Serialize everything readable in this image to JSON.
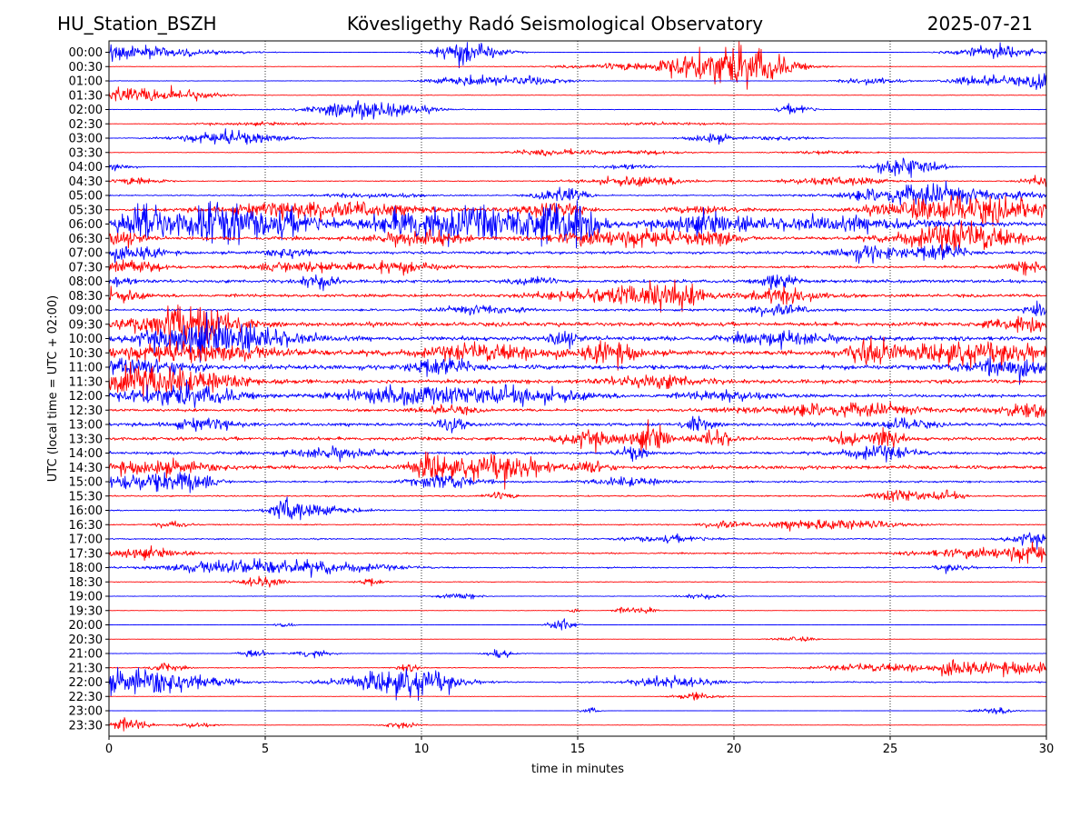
{
  "header": {
    "station": "HU_Station_BSZH",
    "observatory": "Kövesligethy Radó Seismological Observatory",
    "date": "2025-07-21"
  },
  "chart_data": {
    "type": "line",
    "xlabel": "time in minutes",
    "ylabel": "UTC (local time = UTC + 02:00)",
    "xlim": [
      0,
      30
    ],
    "x_ticks": [
      "0",
      "5",
      "10",
      "15",
      "20",
      "25",
      "30"
    ],
    "x_tick_values": [
      0,
      5,
      10,
      15,
      20,
      25,
      30
    ],
    "grid": "vertical dotted lines at x ticks",
    "colors": {
      "even_rows": "#0000ff",
      "odd_rows": "#ff0000",
      "axes": "#000000"
    },
    "rows": [
      {
        "label": "00:00",
        "noise": 0.06,
        "events": [
          [
            0.3,
            3.6,
            2
          ],
          [
            11.3,
            2.5,
            0.5
          ],
          [
            11.6,
            3.8,
            0.8
          ],
          [
            28.3,
            3.6,
            0.9
          ]
        ]
      },
      {
        "label": "00:30",
        "noise": 0.08,
        "events": [
          [
            19.8,
            6.5,
            1.2
          ],
          [
            20.6,
            4.0,
            0.9
          ],
          [
            18.0,
            2.5,
            2
          ]
        ]
      },
      {
        "label": "01:00",
        "noise": 0.12,
        "events": [
          [
            11.5,
            2.6,
            0.8
          ],
          [
            13.5,
            2.3,
            0.8
          ],
          [
            24.4,
            2.2,
            0.6
          ],
          [
            28.2,
            2.9,
            0.9
          ],
          [
            29.9,
            4.5,
            0.3
          ]
        ]
      },
      {
        "label": "01:30",
        "noise": 0.1,
        "events": [
          [
            0.1,
            4.0,
            0.5
          ],
          [
            1.9,
            3.5,
            1
          ]
        ]
      },
      {
        "label": "02:00",
        "noise": 0.12,
        "events": [
          [
            8.3,
            3.2,
            0.9
          ],
          [
            9.2,
            1.5,
            1
          ],
          [
            22.0,
            2.5,
            0.4
          ],
          [
            7.0,
            1.0,
            1
          ]
        ]
      },
      {
        "label": "02:30",
        "noise": 0.07,
        "events": [
          [
            4.8,
            0.8,
            1.5
          ],
          [
            17.8,
            0.7,
            1.5
          ]
        ]
      },
      {
        "label": "03:00",
        "noise": 0.1,
        "events": [
          [
            3.9,
            3.4,
            1.2
          ],
          [
            19.2,
            2.4,
            0.5
          ],
          [
            21.5,
            1.1,
            0.8
          ]
        ]
      },
      {
        "label": "03:30",
        "noise": 0.1,
        "events": [
          [
            14.2,
            1.5,
            1
          ],
          [
            17.2,
            1.1,
            1
          ],
          [
            23.0,
            1.0,
            1
          ]
        ]
      },
      {
        "label": "04:00",
        "noise": 0.14,
        "events": [
          [
            0.1,
            2.5,
            0.4
          ],
          [
            25.0,
            2.2,
            0.5
          ],
          [
            25.8,
            3.8,
            0.6
          ],
          [
            16.5,
            1.4,
            0.6
          ]
        ]
      },
      {
        "label": "04:30",
        "noise": 0.18,
        "events": [
          [
            1.0,
            2.5,
            0.5
          ],
          [
            17.0,
            2.4,
            1.2
          ],
          [
            23.2,
            2.2,
            1.2
          ],
          [
            30.0,
            2.6,
            0.5
          ]
        ]
      },
      {
        "label": "05:00",
        "noise": 0.3,
        "events": [
          [
            14.5,
            4.4,
            0.5
          ],
          [
            25.6,
            3.4,
            1.5
          ],
          [
            27.5,
            2.1,
            2
          ],
          [
            8.5,
            1.2,
            1
          ]
        ]
      },
      {
        "label": "05:30",
        "noise": 0.45,
        "events": [
          [
            6.0,
            2.6,
            2
          ],
          [
            8.0,
            2.0,
            2
          ],
          [
            14.2,
            3.6,
            0.8
          ],
          [
            26.5,
            4.8,
            1.4
          ],
          [
            28.8,
            4.0,
            1.5
          ],
          [
            19.0,
            1.6,
            1
          ]
        ]
      },
      {
        "label": "06:00",
        "noise": 1.0,
        "events": [
          [
            0.7,
            5.0,
            0.3
          ],
          [
            1.3,
            8.0,
            0.3
          ],
          [
            2.4,
            4.2,
            1.2
          ],
          [
            3.4,
            7.0,
            0.5
          ],
          [
            5.3,
            6.0,
            1.3
          ],
          [
            9.8,
            5.4,
            1
          ],
          [
            12.0,
            7.0,
            1.5
          ],
          [
            14.3,
            7.4,
            0.8
          ],
          [
            15.1,
            6.8,
            0.4
          ],
          [
            19.0,
            4.5,
            1
          ],
          [
            23.5,
            3.0,
            2
          ]
        ]
      },
      {
        "label": "06:30",
        "noise": 0.75,
        "events": [
          [
            0.3,
            4.0,
            0.5
          ],
          [
            10.0,
            3.0,
            1
          ],
          [
            15.4,
            2.6,
            1
          ],
          [
            17.2,
            3.4,
            1
          ],
          [
            19.4,
            3.8,
            0.5
          ],
          [
            26.8,
            5.2,
            1.2
          ],
          [
            28.3,
            2.7,
            1
          ]
        ]
      },
      {
        "label": "07:00",
        "noise": 0.65,
        "events": [
          [
            0.6,
            3.4,
            0.8
          ],
          [
            5.8,
            2.5,
            0.5
          ],
          [
            24.4,
            3.4,
            0.8
          ],
          [
            26.6,
            4.6,
            0.5
          ]
        ]
      },
      {
        "label": "07:30",
        "noise": 0.55,
        "events": [
          [
            0.6,
            3.4,
            0.8
          ],
          [
            6.2,
            2.6,
            1
          ],
          [
            9.2,
            2.7,
            1
          ],
          [
            29.4,
            2.8,
            0.5
          ]
        ]
      },
      {
        "label": "08:00",
        "noise": 0.75,
        "events": [
          [
            6.7,
            3.6,
            0.4
          ],
          [
            21.4,
            4.4,
            0.4
          ],
          [
            0.2,
            2.4,
            0.4
          ],
          [
            13.6,
            2.4,
            0.4
          ]
        ]
      },
      {
        "label": "08:30",
        "noise": 0.75,
        "events": [
          [
            16.5,
            4.4,
            1.5
          ],
          [
            18.0,
            3.8,
            0.8
          ],
          [
            21.8,
            3.4,
            0.8
          ],
          [
            0.2,
            2.8,
            0.6
          ]
        ]
      },
      {
        "label": "09:00",
        "noise": 0.55,
        "events": [
          [
            29.8,
            4.8,
            0.3
          ],
          [
            12.0,
            2.2,
            0.8
          ],
          [
            21.4,
            3.0,
            0.6
          ]
        ]
      },
      {
        "label": "09:30",
        "noise": 0.95,
        "events": [
          [
            2.4,
            7.0,
            0.6
          ],
          [
            3.6,
            4.4,
            0.6
          ],
          [
            1.2,
            3.2,
            1.5
          ],
          [
            29.4,
            4.0,
            0.8
          ]
        ]
      },
      {
        "label": "10:00",
        "noise": 1.0,
        "events": [
          [
            3.9,
            5.6,
            1.5
          ],
          [
            2.5,
            4.2,
            1
          ],
          [
            14.5,
            4.6,
            0.3
          ],
          [
            21.5,
            2.8,
            1
          ]
        ]
      },
      {
        "label": "10:30",
        "noise": 1.1,
        "events": [
          [
            2.5,
            4.0,
            2
          ],
          [
            12.2,
            3.6,
            1.5
          ],
          [
            16.1,
            5.6,
            0.6
          ],
          [
            24.5,
            6.4,
            0.6
          ],
          [
            27.0,
            4.4,
            1
          ],
          [
            29.0,
            4.0,
            0.8
          ]
        ]
      },
      {
        "label": "11:00",
        "noise": 1.05,
        "events": [
          [
            1.0,
            3.8,
            1.2
          ],
          [
            10.6,
            4.4,
            0.6
          ],
          [
            28.8,
            4.6,
            1
          ]
        ]
      },
      {
        "label": "11:30",
        "noise": 0.95,
        "events": [
          [
            2.2,
            5.2,
            1.5
          ],
          [
            0.8,
            4.0,
            0.8
          ],
          [
            17.5,
            3.0,
            1
          ]
        ]
      },
      {
        "label": "12:00",
        "noise": 0.75,
        "events": [
          [
            2.3,
            5.2,
            1.3
          ],
          [
            9.6,
            4.0,
            1.5
          ],
          [
            13.2,
            3.4,
            1.5
          ],
          [
            19.8,
            2.4,
            1
          ]
        ]
      },
      {
        "label": "12:30",
        "noise": 0.65,
        "events": [
          [
            23.3,
            3.0,
            2
          ],
          [
            29.5,
            3.8,
            0.8
          ],
          [
            10.8,
            2.2,
            0.6
          ]
        ]
      },
      {
        "label": "13:00",
        "noise": 0.75,
        "events": [
          [
            11.0,
            3.6,
            0.3
          ],
          [
            18.8,
            3.6,
            0.3
          ],
          [
            25.4,
            2.6,
            0.6
          ],
          [
            3.0,
            2.4,
            0.8
          ]
        ]
      },
      {
        "label": "13:30",
        "noise": 0.8,
        "events": [
          [
            17.4,
            6.0,
            0.4
          ],
          [
            15.5,
            3.6,
            0.8
          ],
          [
            19.4,
            3.8,
            0.4
          ],
          [
            24.9,
            5.6,
            0.3
          ],
          [
            23.6,
            3.6,
            0.4
          ]
        ]
      },
      {
        "label": "14:00",
        "noise": 0.65,
        "events": [
          [
            16.8,
            3.6,
            0.3
          ],
          [
            24.6,
            3.2,
            0.8
          ],
          [
            7.2,
            2.2,
            1
          ]
        ]
      },
      {
        "label": "14:30",
        "noise": 0.85,
        "events": [
          [
            10.3,
            6.0,
            0.5
          ],
          [
            12.1,
            4.8,
            0.8
          ],
          [
            13.2,
            4.0,
            0.6
          ],
          [
            15.4,
            3.4,
            0.4
          ],
          [
            1.2,
            3.0,
            1.5
          ]
        ]
      },
      {
        "label": "15:00",
        "noise": 0.45,
        "events": [
          [
            1.0,
            4.2,
            1.2
          ],
          [
            2.6,
            3.2,
            0.5
          ],
          [
            10.8,
            3.4,
            0.8
          ],
          [
            16.6,
            2.2,
            0.8
          ]
        ]
      },
      {
        "label": "15:30",
        "noise": 0.3,
        "events": [
          [
            25.3,
            3.0,
            0.6
          ],
          [
            26.8,
            2.0,
            0.4
          ],
          [
            12.5,
            1.7,
            0.4
          ]
        ]
      },
      {
        "label": "16:00",
        "noise": 0.28,
        "events": [
          [
            5.7,
            5.6,
            0.3
          ],
          [
            6.6,
            2.4,
            1
          ]
        ]
      },
      {
        "label": "16:30",
        "noise": 0.25,
        "events": [
          [
            23.0,
            2.6,
            1.5
          ],
          [
            19.6,
            1.9,
            0.4
          ],
          [
            2.0,
            1.6,
            0.4
          ]
        ]
      },
      {
        "label": "17:00",
        "noise": 0.3,
        "events": [
          [
            29.6,
            2.8,
            0.6
          ],
          [
            18.0,
            1.6,
            1
          ]
        ]
      },
      {
        "label": "17:30",
        "noise": 0.32,
        "events": [
          [
            1.0,
            2.5,
            1
          ],
          [
            29.6,
            3.6,
            0.6
          ],
          [
            28.0,
            2.4,
            1.5
          ]
        ]
      },
      {
        "label": "18:00",
        "noise": 0.3,
        "events": [
          [
            4.0,
            3.2,
            1.5
          ],
          [
            7.0,
            2.4,
            1.5
          ],
          [
            27.0,
            2.0,
            0.4
          ]
        ]
      },
      {
        "label": "18:30",
        "noise": 0.16,
        "events": [
          [
            4.9,
            2.7,
            0.5
          ],
          [
            8.4,
            1.8,
            0.3
          ]
        ]
      },
      {
        "label": "19:00",
        "noise": 0.14,
        "events": [
          [
            11.2,
            1.4,
            0.5
          ],
          [
            19.0,
            1.3,
            0.5
          ]
        ]
      },
      {
        "label": "19:30",
        "noise": 0.08,
        "events": [
          [
            14.9,
            2.4,
            0.1
          ],
          [
            16.6,
            1.6,
            0.3
          ],
          [
            17.3,
            1.6,
            0.2
          ]
        ]
      },
      {
        "label": "20:00",
        "noise": 0.06,
        "events": [
          [
            14.5,
            3.2,
            0.3
          ],
          [
            5.6,
            1.6,
            0.2
          ]
        ]
      },
      {
        "label": "20:30",
        "noise": 0.06,
        "events": [
          [
            22.0,
            1.2,
            0.5
          ]
        ]
      },
      {
        "label": "21:00",
        "noise": 0.12,
        "events": [
          [
            4.6,
            2.2,
            0.3
          ],
          [
            6.5,
            2.4,
            0.4
          ],
          [
            12.5,
            2.4,
            0.3
          ]
        ]
      },
      {
        "label": "21:30",
        "noise": 0.16,
        "events": [
          [
            27.1,
            3.6,
            0.3
          ],
          [
            29.1,
            3.4,
            1.3
          ],
          [
            25.0,
            2.0,
            1.5
          ],
          [
            1.8,
            1.9,
            0.4
          ],
          [
            9.6,
            1.6,
            0.3
          ]
        ]
      },
      {
        "label": "22:00",
        "noise": 0.3,
        "events": [
          [
            0.6,
            4.2,
            1.2
          ],
          [
            2.2,
            3.4,
            1.2
          ],
          [
            9.0,
            5.0,
            1.2
          ],
          [
            10.3,
            3.2,
            0.8
          ],
          [
            18.0,
            2.6,
            1
          ]
        ]
      },
      {
        "label": "22:30",
        "noise": 0.07,
        "events": [
          [
            18.8,
            2.0,
            0.5
          ]
        ]
      },
      {
        "label": "23:00",
        "noise": 0.05,
        "events": [
          [
            15.4,
            1.7,
            0.2
          ],
          [
            28.4,
            1.7,
            0.5
          ]
        ]
      },
      {
        "label": "23:30",
        "noise": 0.08,
        "events": [
          [
            0.6,
            3.0,
            0.5
          ],
          [
            2.8,
            1.6,
            0.4
          ],
          [
            9.3,
            1.6,
            0.4
          ]
        ]
      }
    ]
  }
}
